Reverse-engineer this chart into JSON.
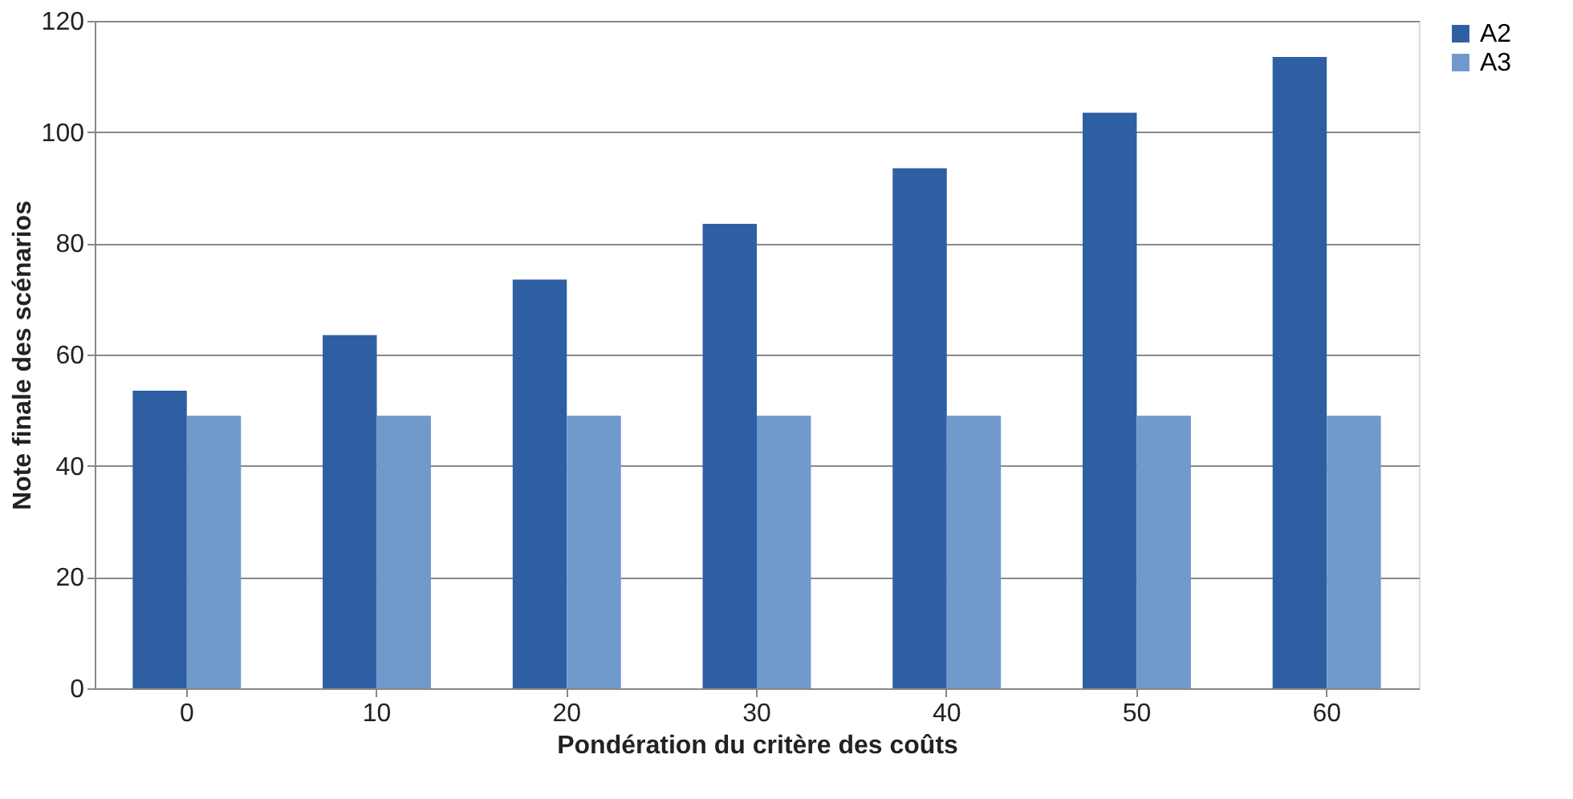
{
  "chart_data": {
    "type": "bar",
    "xlabel": "Pondération du critère des coûts",
    "ylabel": "Note finale des scénarios",
    "categories": [
      "0",
      "10",
      "20",
      "30",
      "40",
      "50",
      "60"
    ],
    "series": [
      {
        "name": "A2",
        "color": "#2e5fa3",
        "values": [
          53.5,
          63.5,
          73.5,
          83.5,
          93.5,
          103.5,
          113.5
        ]
      },
      {
        "name": "A3",
        "color": "#7199cc",
        "values": [
          49,
          49,
          49,
          49,
          49,
          49,
          49
        ]
      }
    ],
    "ylim": [
      0,
      120
    ],
    "yticks": [
      0,
      20,
      40,
      60,
      80,
      100,
      120
    ],
    "grid": "y",
    "legend": "right"
  }
}
